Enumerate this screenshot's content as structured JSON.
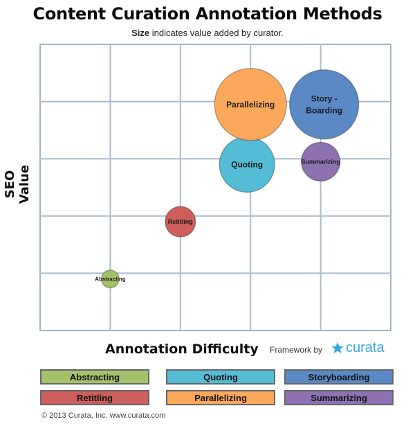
{
  "title": "Content Curation Annotation Methods",
  "subtitle_bold": "Size",
  "subtitle_rest": "indicates value added by curator.",
  "ylabel": "SEO Value",
  "xlabel": "Annotation Difficulty",
  "framework_text": "Framework by",
  "brand": {
    "name": "curata",
    "icon": "curata-star-icon",
    "color": "#3aa6dc"
  },
  "footer": "© 2013 Curata, Inc. www.curata.com",
  "chart_data": {
    "type": "scatter",
    "subtype": "bubble",
    "title": "Content Curation Annotation Methods",
    "subtitle": "Size indicates value added by curator.",
    "xlabel": "Annotation Difficulty",
    "ylabel": "SEO Value",
    "xlim": [
      0,
      5
    ],
    "ylim": [
      0,
      5
    ],
    "grid": true,
    "tick_labels_shown": false,
    "legend_placement": "bottom",
    "points": [
      {
        "name": "Abstracting",
        "x": 1.0,
        "y": 0.9,
        "size": 0.32,
        "color": "#a3c36a",
        "label": "Abstracting"
      },
      {
        "name": "Retitling",
        "x": 2.0,
        "y": 1.9,
        "size": 0.55,
        "color": "#cc5e5c",
        "label": "Retitling"
      },
      {
        "name": "Quoting",
        "x": 2.95,
        "y": 2.9,
        "size": 1.0,
        "color": "#55bcd5",
        "label": "Quoting"
      },
      {
        "name": "Summarizing",
        "x": 4.0,
        "y": 2.95,
        "size": 0.7,
        "color": "#8d71b1",
        "label": "Summarizing"
      },
      {
        "name": "Storyboarding",
        "x": 4.05,
        "y": 3.95,
        "size": 1.25,
        "color": "#5a89c6",
        "label_lines": [
          "Story -",
          "Boarding"
        ]
      },
      {
        "name": "Parallelizing",
        "x": 3.0,
        "y": 3.95,
        "size": 1.3,
        "color": "#fba85a",
        "label": "Parallelizing"
      }
    ],
    "legend": [
      {
        "label": "Abstracting",
        "color": "#a3c36a"
      },
      {
        "label": "Quoting",
        "color": "#55bcd5"
      },
      {
        "label": "Storyboarding",
        "color": "#5a89c6"
      },
      {
        "label": "Retitling",
        "color": "#cc5e5c"
      },
      {
        "label": "Parallelizing",
        "color": "#fba85a"
      },
      {
        "label": "Summarizing",
        "color": "#8d71b1"
      }
    ]
  }
}
